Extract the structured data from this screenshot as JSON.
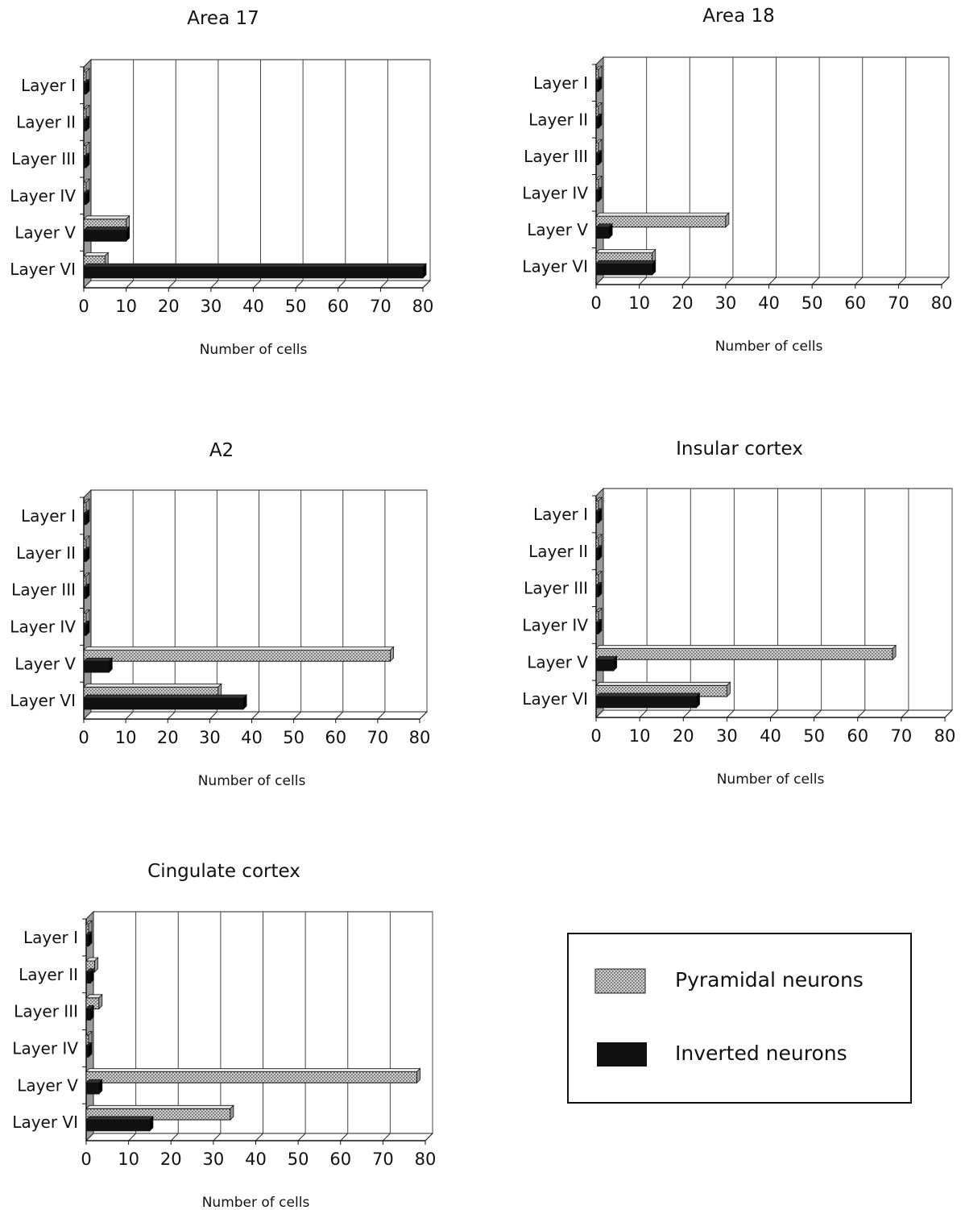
{
  "legend": {
    "pyramidal_label": "Pyramidal neurons",
    "inverted_label": "Inverted neurons",
    "placement": "bottom-right"
  },
  "colors": {
    "pyramidal_fill": "#c9c9c9",
    "pyramidal_hatch": "#555555",
    "inverted_fill": "#111111",
    "grid": "#444444",
    "wall": "#9a9a9a"
  },
  "chart_data": [
    {
      "type": "bar",
      "orientation": "horizontal",
      "title": "Area 17",
      "xlabel": "Number of cells",
      "categories": [
        "Layer I",
        "Layer II",
        "Layer III",
        "Layer IV",
        "Layer V",
        "Layer VI"
      ],
      "xlim": [
        0,
        80
      ],
      "xticks": [
        0,
        10,
        20,
        30,
        40,
        50,
        60,
        70,
        80
      ],
      "grid": true,
      "series": [
        {
          "name": "Pyramidal neurons",
          "values": [
            0,
            0,
            0,
            0,
            10,
            5
          ]
        },
        {
          "name": "Inverted neurons",
          "values": [
            0,
            0,
            0,
            0,
            10,
            80
          ]
        }
      ]
    },
    {
      "type": "bar",
      "orientation": "horizontal",
      "title": "Area 18",
      "xlabel": "Number of cells",
      "categories": [
        "Layer I",
        "Layer II",
        "Layer III",
        "Layer IV",
        "Layer V",
        "Layer VI"
      ],
      "xlim": [
        0,
        80
      ],
      "xticks": [
        0,
        10,
        20,
        30,
        40,
        50,
        60,
        70,
        80
      ],
      "grid": true,
      "series": [
        {
          "name": "Pyramidal neurons",
          "values": [
            0,
            0,
            0,
            0,
            30,
            13
          ]
        },
        {
          "name": "Inverted neurons",
          "values": [
            0,
            0,
            0,
            0,
            3,
            13
          ]
        }
      ]
    },
    {
      "type": "bar",
      "orientation": "horizontal",
      "title": "A2",
      "xlabel": "Number of cells",
      "categories": [
        "Layer I",
        "Layer II",
        "Layer III",
        "Layer IV",
        "Layer V",
        "Layer VI"
      ],
      "xlim": [
        0,
        80
      ],
      "xticks": [
        0,
        10,
        20,
        30,
        40,
        50,
        60,
        70,
        80
      ],
      "grid": true,
      "series": [
        {
          "name": "Pyramidal neurons",
          "values": [
            0,
            0,
            0,
            0,
            73,
            32
          ]
        },
        {
          "name": "Inverted neurons",
          "values": [
            0,
            0,
            0,
            0,
            6,
            38
          ]
        }
      ]
    },
    {
      "type": "bar",
      "orientation": "horizontal",
      "title": "Insular cortex",
      "xlabel": "Number of cells",
      "categories": [
        "Layer I",
        "Layer II",
        "Layer III",
        "Layer IV",
        "Layer V",
        "Layer VI"
      ],
      "xlim": [
        0,
        80
      ],
      "xticks": [
        0,
        10,
        20,
        30,
        40,
        50,
        60,
        70,
        80
      ],
      "grid": true,
      "series": [
        {
          "name": "Pyramidal neurons",
          "values": [
            0,
            0,
            0,
            0,
            68,
            30
          ]
        },
        {
          "name": "Inverted neurons",
          "values": [
            0,
            0,
            0,
            0,
            4,
            23
          ]
        }
      ]
    },
    {
      "type": "bar",
      "orientation": "horizontal",
      "title": "Cingulate cortex",
      "xlabel": "Number of cells",
      "categories": [
        "Layer I",
        "Layer II",
        "Layer III",
        "Layer IV",
        "Layer V",
        "Layer VI"
      ],
      "xlim": [
        0,
        80
      ],
      "xticks": [
        0,
        10,
        20,
        30,
        40,
        50,
        60,
        70,
        80
      ],
      "grid": true,
      "series": [
        {
          "name": "Pyramidal neurons",
          "values": [
            0,
            2,
            3,
            0,
            78,
            34
          ]
        },
        {
          "name": "Inverted neurons",
          "values": [
            0,
            1,
            1,
            0,
            3,
            15
          ]
        }
      ]
    }
  ]
}
